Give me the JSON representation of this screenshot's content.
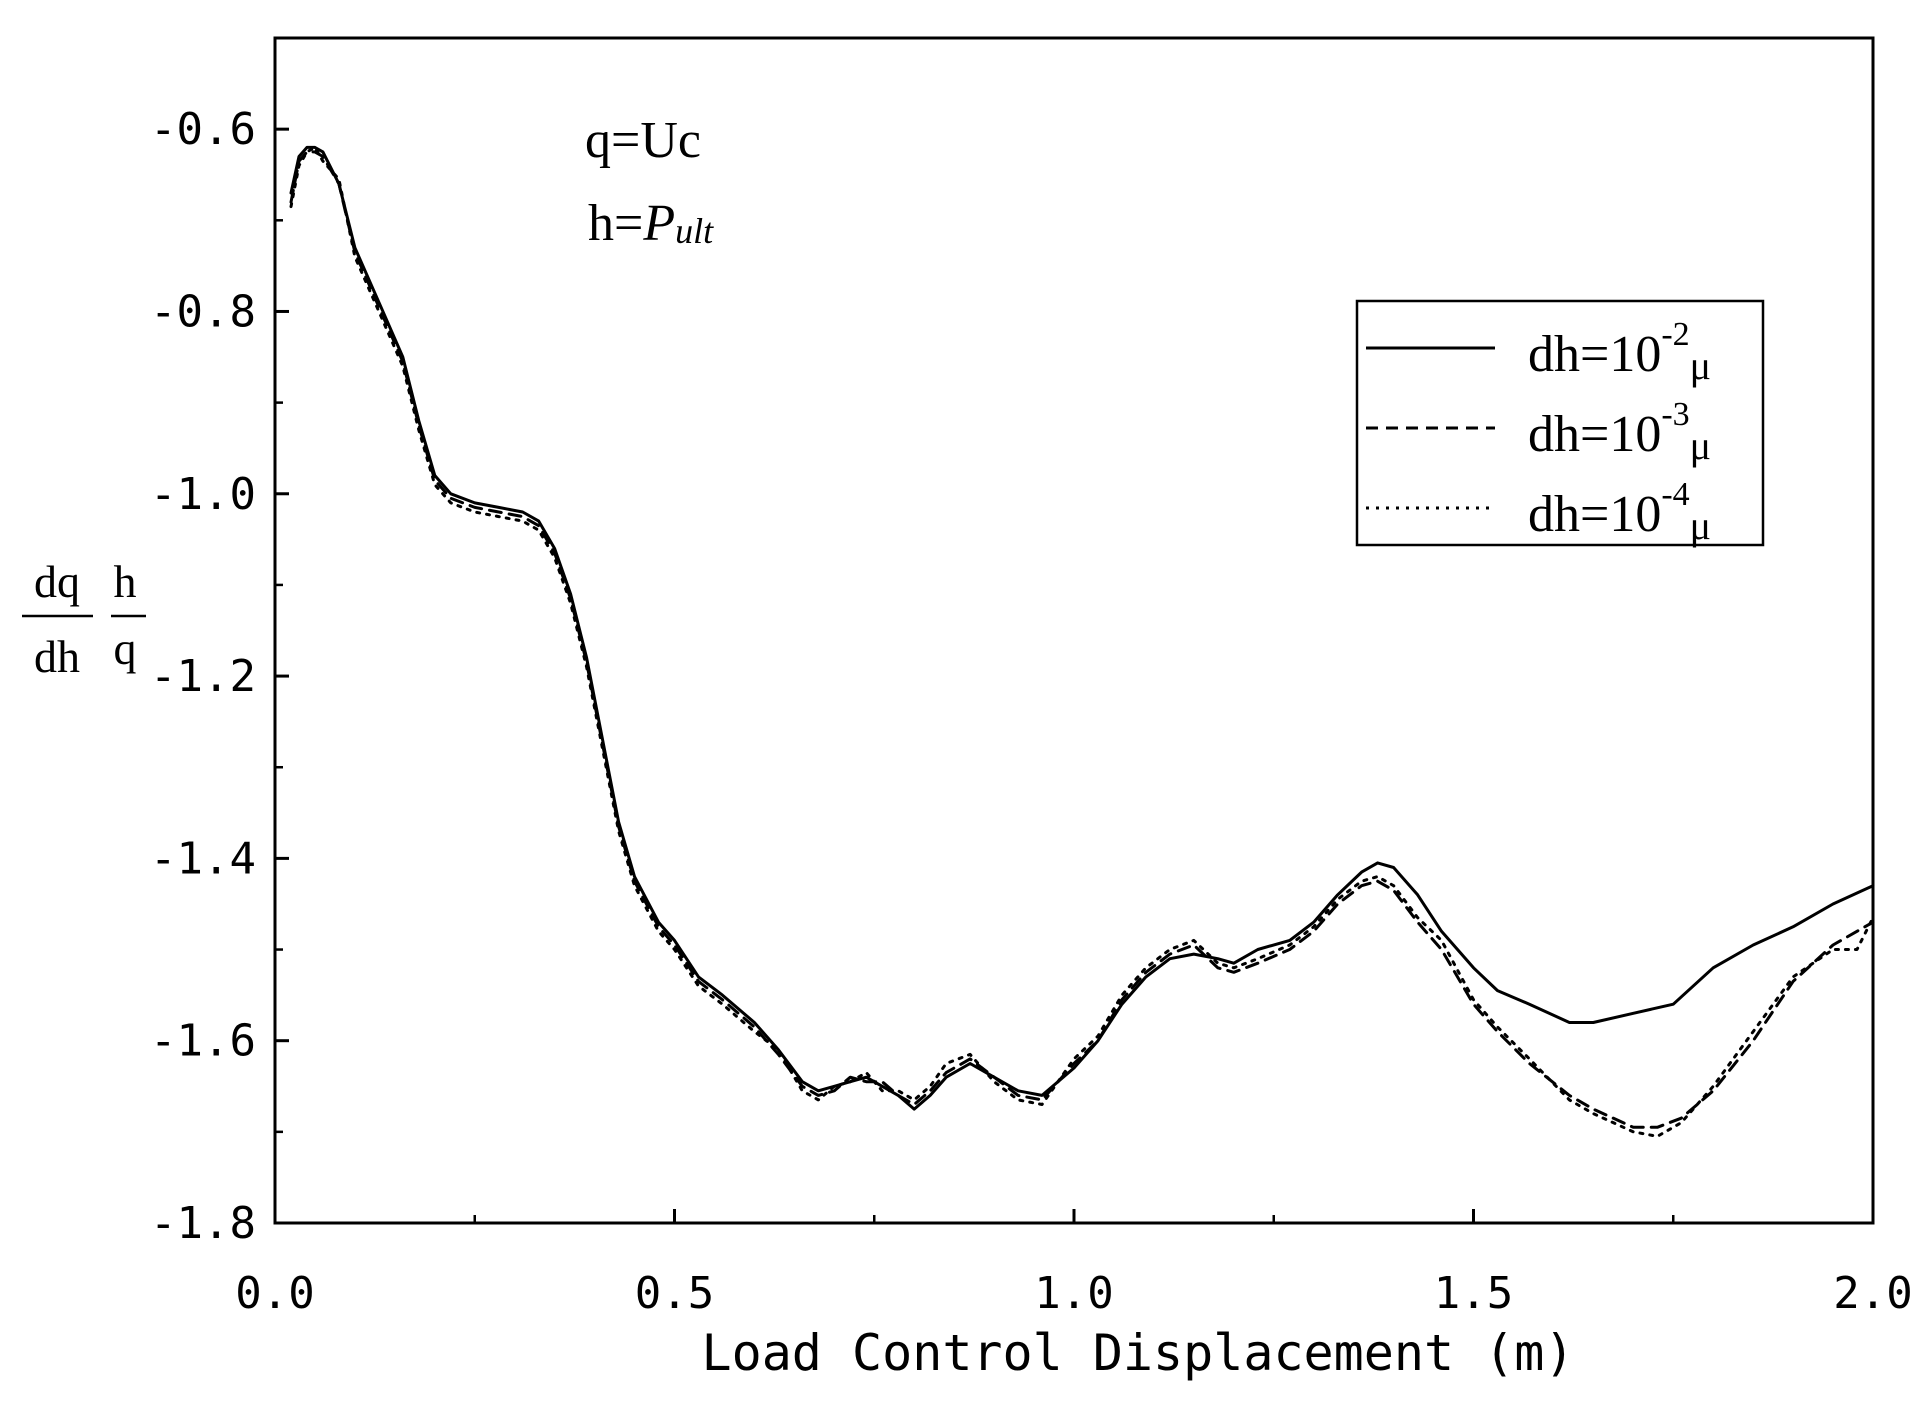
{
  "chart_data": {
    "type": "line",
    "xlabel": "Load Control Displacement (m)",
    "ylabel": {
      "num1": "dq",
      "den1": "dh",
      "num2": "h",
      "den2": "q"
    },
    "xlim": [
      0.0,
      2.0
    ],
    "ylim": [
      -1.8,
      -0.5
    ],
    "xticks": [
      0.0,
      0.5,
      1.0,
      1.5,
      2.0
    ],
    "xtick_labels": [
      "0.0",
      "0.5",
      "1.0",
      "1.5",
      "2.0"
    ],
    "yticks": [
      -1.8,
      -1.6,
      -1.4,
      -1.2,
      -1.0,
      -0.8,
      -0.6
    ],
    "ytick_labels": [
      "-1.8",
      "-1.6",
      "-1.4",
      "-1.2",
      "-1.0",
      "-0.8",
      "-0.6"
    ],
    "grid": false,
    "legend_position": "upper-right",
    "annotations": [
      {
        "lhs": "q=",
        "rhs": "Uc"
      },
      {
        "lhs": "h=",
        "rhs": "P",
        "sub": "ult"
      }
    ],
    "series": [
      {
        "name": "dh=10",
        "exponent": "-2",
        "unit": "μ",
        "style": "solid",
        "x": [
          0.02,
          0.03,
          0.04,
          0.05,
          0.06,
          0.08,
          0.1,
          0.13,
          0.16,
          0.18,
          0.2,
          0.22,
          0.25,
          0.28,
          0.31,
          0.33,
          0.35,
          0.37,
          0.39,
          0.41,
          0.43,
          0.45,
          0.48,
          0.5,
          0.53,
          0.56,
          0.6,
          0.63,
          0.66,
          0.68,
          0.7,
          0.72,
          0.74,
          0.76,
          0.78,
          0.8,
          0.82,
          0.84,
          0.87,
          0.9,
          0.93,
          0.96,
          1.0,
          1.03,
          1.06,
          1.09,
          1.12,
          1.15,
          1.18,
          1.2,
          1.23,
          1.27,
          1.3,
          1.33,
          1.36,
          1.38,
          1.4,
          1.43,
          1.46,
          1.5,
          1.53,
          1.57,
          1.62,
          1.65,
          1.7,
          1.75,
          1.8,
          1.85,
          1.9,
          1.95,
          2.0
        ],
        "y": [
          -0.67,
          -0.63,
          -0.62,
          -0.62,
          -0.625,
          -0.66,
          -0.73,
          -0.79,
          -0.85,
          -0.92,
          -0.98,
          -1.0,
          -1.01,
          -1.015,
          -1.02,
          -1.03,
          -1.06,
          -1.11,
          -1.18,
          -1.27,
          -1.36,
          -1.42,
          -1.47,
          -1.49,
          -1.53,
          -1.55,
          -1.58,
          -1.61,
          -1.645,
          -1.655,
          -1.65,
          -1.645,
          -1.64,
          -1.65,
          -1.66,
          -1.675,
          -1.66,
          -1.64,
          -1.625,
          -1.64,
          -1.655,
          -1.66,
          -1.63,
          -1.6,
          -1.56,
          -1.53,
          -1.51,
          -1.505,
          -1.51,
          -1.515,
          -1.5,
          -1.49,
          -1.47,
          -1.44,
          -1.415,
          -1.405,
          -1.41,
          -1.44,
          -1.48,
          -1.52,
          -1.545,
          -1.56,
          -1.58,
          -1.58,
          -1.57,
          -1.56,
          -1.52,
          -1.495,
          -1.475,
          -1.45,
          -1.43
        ]
      },
      {
        "name": "dh=10",
        "exponent": "-3",
        "unit": "μ",
        "style": "dashed",
        "x": [
          0.02,
          0.03,
          0.04,
          0.05,
          0.06,
          0.08,
          0.1,
          0.13,
          0.16,
          0.18,
          0.2,
          0.22,
          0.25,
          0.28,
          0.31,
          0.33,
          0.35,
          0.37,
          0.39,
          0.41,
          0.43,
          0.45,
          0.48,
          0.5,
          0.53,
          0.56,
          0.6,
          0.63,
          0.66,
          0.68,
          0.7,
          0.72,
          0.74,
          0.76,
          0.78,
          0.8,
          0.82,
          0.84,
          0.87,
          0.9,
          0.93,
          0.96,
          1.0,
          1.03,
          1.06,
          1.09,
          1.12,
          1.15,
          1.18,
          1.2,
          1.23,
          1.27,
          1.3,
          1.33,
          1.36,
          1.38,
          1.4,
          1.43,
          1.46,
          1.5,
          1.53,
          1.57,
          1.62,
          1.65,
          1.7,
          1.73,
          1.76,
          1.8,
          1.85,
          1.9,
          1.95,
          1.98,
          2.0
        ],
        "y": [
          -0.68,
          -0.635,
          -0.625,
          -0.625,
          -0.63,
          -0.66,
          -0.735,
          -0.795,
          -0.855,
          -0.925,
          -0.985,
          -1.005,
          -1.015,
          -1.02,
          -1.025,
          -1.035,
          -1.065,
          -1.115,
          -1.185,
          -1.275,
          -1.365,
          -1.425,
          -1.475,
          -1.495,
          -1.535,
          -1.555,
          -1.585,
          -1.615,
          -1.65,
          -1.66,
          -1.655,
          -1.64,
          -1.645,
          -1.645,
          -1.66,
          -1.67,
          -1.655,
          -1.635,
          -1.62,
          -1.64,
          -1.66,
          -1.665,
          -1.625,
          -1.6,
          -1.555,
          -1.525,
          -1.505,
          -1.495,
          -1.52,
          -1.525,
          -1.515,
          -1.5,
          -1.48,
          -1.45,
          -1.43,
          -1.425,
          -1.435,
          -1.47,
          -1.5,
          -1.56,
          -1.59,
          -1.625,
          -1.66,
          -1.675,
          -1.695,
          -1.695,
          -1.685,
          -1.655,
          -1.6,
          -1.535,
          -1.495,
          -1.48,
          -1.47
        ]
      },
      {
        "name": "dh=10",
        "exponent": "-4",
        "unit": "μ",
        "style": "dotted",
        "x": [
          0.02,
          0.03,
          0.04,
          0.05,
          0.06,
          0.08,
          0.1,
          0.13,
          0.16,
          0.18,
          0.2,
          0.22,
          0.25,
          0.28,
          0.31,
          0.33,
          0.35,
          0.37,
          0.39,
          0.41,
          0.43,
          0.45,
          0.48,
          0.5,
          0.53,
          0.56,
          0.6,
          0.63,
          0.66,
          0.68,
          0.7,
          0.72,
          0.74,
          0.76,
          0.78,
          0.8,
          0.82,
          0.84,
          0.87,
          0.9,
          0.93,
          0.96,
          1.0,
          1.03,
          1.06,
          1.09,
          1.12,
          1.15,
          1.18,
          1.2,
          1.23,
          1.27,
          1.3,
          1.33,
          1.36,
          1.38,
          1.4,
          1.43,
          1.46,
          1.5,
          1.53,
          1.57,
          1.62,
          1.65,
          1.7,
          1.73,
          1.76,
          1.8,
          1.85,
          1.9,
          1.95,
          1.98,
          2.0
        ],
        "y": [
          -0.685,
          -0.64,
          -0.625,
          -0.62,
          -0.635,
          -0.655,
          -0.74,
          -0.8,
          -0.86,
          -0.93,
          -0.99,
          -1.01,
          -1.02,
          -1.025,
          -1.03,
          -1.04,
          -1.07,
          -1.12,
          -1.19,
          -1.28,
          -1.37,
          -1.43,
          -1.48,
          -1.5,
          -1.54,
          -1.56,
          -1.59,
          -1.61,
          -1.655,
          -1.665,
          -1.65,
          -1.645,
          -1.635,
          -1.655,
          -1.655,
          -1.665,
          -1.65,
          -1.625,
          -1.615,
          -1.645,
          -1.665,
          -1.67,
          -1.62,
          -1.595,
          -1.55,
          -1.52,
          -1.5,
          -1.49,
          -1.515,
          -1.52,
          -1.51,
          -1.495,
          -1.475,
          -1.445,
          -1.425,
          -1.42,
          -1.43,
          -1.465,
          -1.49,
          -1.555,
          -1.585,
          -1.62,
          -1.665,
          -1.68,
          -1.7,
          -1.705,
          -1.69,
          -1.65,
          -1.59,
          -1.53,
          -1.5,
          -1.5,
          -1.465
        ]
      }
    ]
  }
}
